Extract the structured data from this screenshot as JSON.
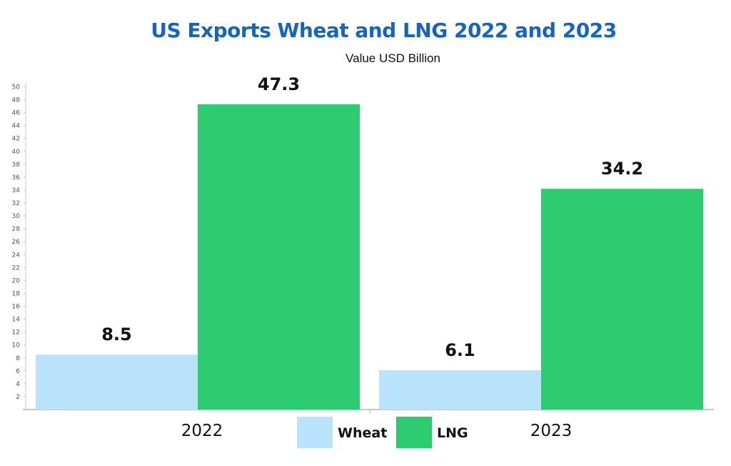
{
  "chart_data": {
    "type": "bar",
    "title": "US Exports Wheat and LNG 2022 and 2023",
    "subtitle": "Value USD Billion",
    "categories": [
      "2022",
      "2023"
    ],
    "series": [
      {
        "name": "Wheat",
        "values": [
          8.5,
          6.1
        ],
        "color": "#b8e3fb"
      },
      {
        "name": "LNG",
        "values": [
          47.3,
          34.2
        ],
        "color": "#2ecc71"
      }
    ],
    "ylim": [
      0,
      50
    ],
    "ytick_step": 2,
    "grid": false,
    "legend_position": "bottom-center",
    "data_labels": [
      "8.5",
      "47.3",
      "6.1",
      "34.2"
    ]
  }
}
